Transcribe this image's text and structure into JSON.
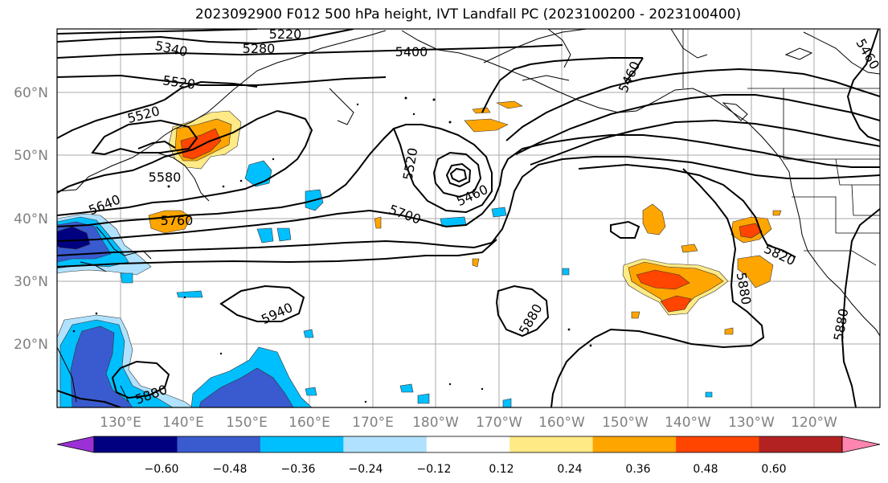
{
  "title": "2023092900 F012 500 hPa height, IVT Landfall PC (2023100200 - 2023100400)",
  "lat_labels": [
    "60°N",
    "50°N",
    "40°N",
    "30°N",
    "20°N"
  ],
  "lon_labels": [
    "130°E",
    "140°E",
    "150°E",
    "160°E",
    "170°E",
    "180°W",
    "170°W",
    "160°W",
    "150°W",
    "140°W",
    "130°W",
    "120°W"
  ],
  "contour_labels": [
    "5220",
    "5340",
    "5280",
    "5400",
    "5460",
    "5460",
    "5520",
    "5520",
    "5520",
    "5580",
    "5640",
    "5700",
    "5760",
    "5820",
    "5880",
    "5880",
    "5880",
    "5880",
    "5940",
    "5460"
  ],
  "colorbar": {
    "tick_labels": [
      "−0.60",
      "−0.48",
      "−0.36",
      "−0.24",
      "−0.12",
      "0.12",
      "0.24",
      "0.36",
      "0.48",
      "0.60"
    ],
    "colors": [
      "#9b30d6",
      "#000080",
      "#3a5bcf",
      "#00bfff",
      "#b0e2ff",
      "#ffffff",
      "#ffea85",
      "#ffa500",
      "#ff4500",
      "#b22222",
      "#ff85b0"
    ]
  }
}
